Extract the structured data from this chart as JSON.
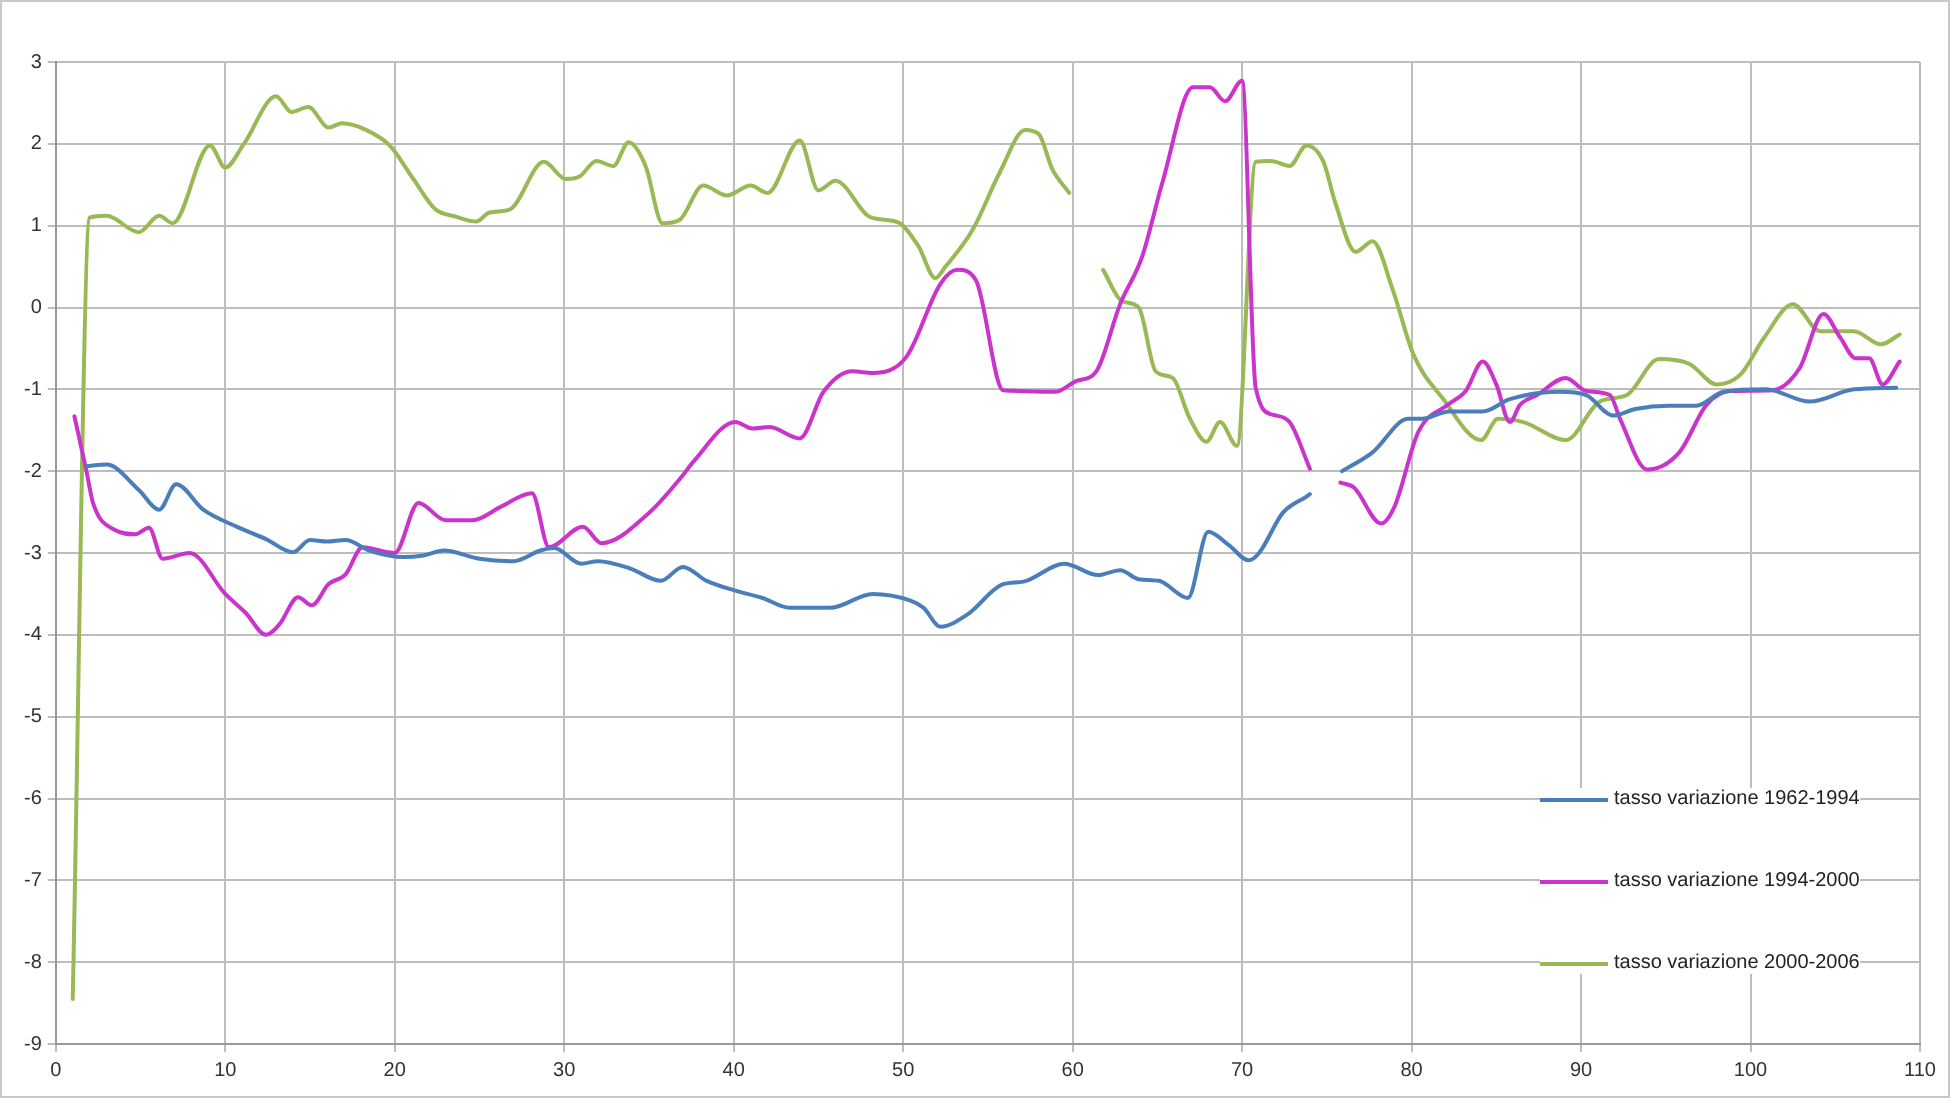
{
  "chart_data": {
    "type": "line",
    "xlim": [
      0,
      110
    ],
    "xticks": [
      0,
      10,
      20,
      30,
      40,
      50,
      60,
      70,
      80,
      90,
      100,
      110
    ],
    "ylim": [
      -9,
      3
    ],
    "yticks": [
      -9,
      -8,
      -7,
      -6,
      -5,
      -4,
      -3,
      -2,
      -1,
      0,
      1,
      2,
      3
    ],
    "grid": true,
    "legend": "bottom right",
    "marker": "none",
    "line_style": "solid",
    "series": [
      {
        "name": "tasso variazione 1962-1994",
        "color": "#4a7ebb",
        "x": [
          1.8,
          3,
          4.9,
          6.1,
          7.1,
          8.7,
          10.7,
          12.4,
          14,
          15,
          16,
          17.1,
          18.5,
          20.5,
          21.7,
          22.9,
          25,
          27,
          28.6,
          29.4,
          31,
          32,
          33.9,
          35.7,
          37,
          38.4,
          40.1,
          41.7,
          43.3,
          45.7,
          48.2,
          50.4,
          51.2,
          52.2,
          53.8,
          55.9,
          57.1,
          59.5,
          61.5,
          62.8,
          63.9,
          65.1,
          66.8,
          68,
          69.2,
          70.4,
          71,
          72.4,
          73.8,
          74,
          75,
          75.9,
          77.7,
          79.8,
          80.6,
          82.2,
          84.2,
          85.8,
          88.7,
          90.3,
          91.9,
          93.2,
          95.2,
          96.8,
          98.4,
          100.9,
          103.5,
          106.1,
          108.6
        ],
        "values": [
          -1.94,
          -1.92,
          -2.23,
          -2.47,
          -2.16,
          -2.47,
          -2.68,
          -2.83,
          -2.99,
          -2.84,
          -2.86,
          -2.84,
          -2.97,
          -3.05,
          -3.03,
          -2.97,
          -3.07,
          -3.1,
          -2.97,
          -2.94,
          -3.13,
          -3.1,
          -3.19,
          -3.34,
          -3.17,
          -3.34,
          -3.46,
          -3.55,
          -3.67,
          -3.67,
          -3.5,
          -3.58,
          -3.67,
          -3.9,
          -3.75,
          -3.38,
          -3.35,
          -3.13,
          -3.27,
          -3.21,
          -3.32,
          -3.34,
          -3.55,
          -2.74,
          -2.9,
          -3.09,
          -3,
          -2.51,
          -2.31,
          -2.28,
          null,
          -2,
          -1.77,
          -1.36,
          -1.36,
          -1.27,
          -1.27,
          -1.12,
          -1.03,
          -1.07,
          -1.32,
          -1.24,
          -1.2,
          -1.2,
          -1.03,
          -1,
          -1.15,
          -1,
          -0.98
        ]
      },
      {
        "name": "tasso variazione 1994-2000",
        "color": "#cc33cc",
        "x": [
          1.1,
          1.8,
          2.2,
          3.5,
          4.7,
          5.5,
          6.3,
          7.9,
          10,
          11.2,
          12.4,
          13.2,
          14.3,
          15.1,
          16.1,
          17.1,
          18.1,
          20,
          21.4,
          23,
          24.6,
          26.3,
          28.1,
          29.1,
          31.1,
          32.2,
          35,
          37,
          37.6,
          40.1,
          41.1,
          42.1,
          43.9,
          45.3,
          47,
          48.2,
          50.2,
          52.2,
          53.2,
          54.3,
          55.9,
          59,
          60.2,
          61.4,
          62.8,
          64.1,
          65.3,
          67.1,
          68.1,
          69,
          70,
          70.8,
          71.8,
          72.8,
          74,
          75,
          75.8,
          76.6,
          78.2,
          79,
          80.4,
          82.2,
          83.2,
          84.2,
          85,
          85.8,
          86.4,
          87.4,
          89.1,
          90.3,
          91.7,
          92.3,
          93.9,
          95.8,
          97.4,
          98.8,
          101.3,
          102.9,
          104.3,
          105.3,
          106.2,
          107,
          107.8,
          108.8
        ],
        "values": [
          -1.33,
          -1.99,
          -2.39,
          -2.72,
          -2.77,
          -2.69,
          -3.07,
          -3,
          -3.5,
          -3.73,
          -4,
          -3.87,
          -3.54,
          -3.64,
          -3.38,
          -3.26,
          -2.93,
          -3,
          -2.39,
          -2.6,
          -2.6,
          -2.43,
          -2.27,
          -2.93,
          -2.68,
          -2.88,
          -2.51,
          -2.05,
          -1.89,
          -1.4,
          -1.48,
          -1.46,
          -1.6,
          -1.03,
          -0.78,
          -0.8,
          -0.6,
          0.29,
          0.46,
          0.33,
          -1.01,
          -1.03,
          -0.9,
          -0.78,
          0.04,
          0.62,
          1.53,
          2.69,
          2.69,
          2.52,
          2.77,
          -0.98,
          -1.31,
          -1.4,
          -1.97,
          null,
          -2.14,
          -2.2,
          -2.64,
          -2.43,
          -1.52,
          -1.18,
          -1.02,
          -0.66,
          -0.94,
          -1.4,
          -1.19,
          -1.07,
          -0.86,
          -1.02,
          -1.07,
          -1.36,
          -1.98,
          -1.77,
          -1.19,
          -1.02,
          -1.01,
          -0.74,
          -0.08,
          -0.37,
          -0.62,
          -0.62,
          -0.94,
          -0.66
        ]
      },
      {
        "name": "tasso variazione 2000-2006",
        "color": "#98b954",
        "x": [
          1,
          2,
          3,
          4.9,
          6.1,
          6.9,
          9.1,
          10,
          11.1,
          13,
          13.9,
          14.9,
          16.1,
          16.9,
          18.3,
          19.7,
          21.1,
          22.4,
          23.6,
          24.8,
          25.6,
          26.8,
          28.8,
          30.1,
          30.9,
          31.9,
          32.9,
          33.8,
          34.8,
          35.8,
          36.8,
          38.2,
          39.6,
          41,
          42,
          43.9,
          45,
          46,
          48.1,
          49.7,
          50.9,
          51.9,
          52.5,
          54.1,
          55.7,
          57.2,
          58,
          58.8,
          59.8,
          61,
          61.8,
          62.9,
          63.9,
          64.9,
          65.9,
          66.9,
          67.9,
          68.7,
          69.7,
          70.8,
          71.7,
          72.8,
          73.8,
          74.8,
          75.5,
          76.7,
          77.7,
          78.9,
          80.1,
          81.8,
          84.1,
          85.1,
          86.6,
          89.1,
          91.1,
          92.7,
          94.6,
          96.4,
          98,
          99.4,
          100.8,
          102.5,
          104.1,
          106.1,
          107.7,
          108.8
        ],
        "values": [
          -8.45,
          1.1,
          1.12,
          0.92,
          1.12,
          1.03,
          1.98,
          1.71,
          2,
          2.58,
          2.39,
          2.45,
          2.2,
          2.25,
          2.17,
          1.98,
          1.57,
          1.2,
          1.11,
          1.05,
          1.16,
          1.2,
          1.78,
          1.57,
          1.6,
          1.79,
          1.73,
          2.02,
          1.73,
          1.03,
          1.07,
          1.49,
          1.37,
          1.49,
          1.4,
          2.04,
          1.43,
          1.55,
          1.1,
          1.04,
          0.75,
          0.36,
          0.5,
          0.95,
          1.65,
          2.17,
          2.12,
          1.69,
          1.4,
          null,
          0.46,
          0.08,
          0,
          -0.78,
          -0.86,
          -1.35,
          -1.64,
          -1.4,
          -1.69,
          1.78,
          1.79,
          1.73,
          1.98,
          1.78,
          1.28,
          0.68,
          0.81,
          0.21,
          -0.57,
          -1.1,
          -1.62,
          -1.36,
          -1.4,
          -1.62,
          -1.15,
          -1.07,
          -0.63,
          -0.69,
          -0.94,
          -0.82,
          -0.37,
          0.04,
          -0.29,
          -0.29,
          -0.45,
          -0.33
        ]
      }
    ]
  }
}
